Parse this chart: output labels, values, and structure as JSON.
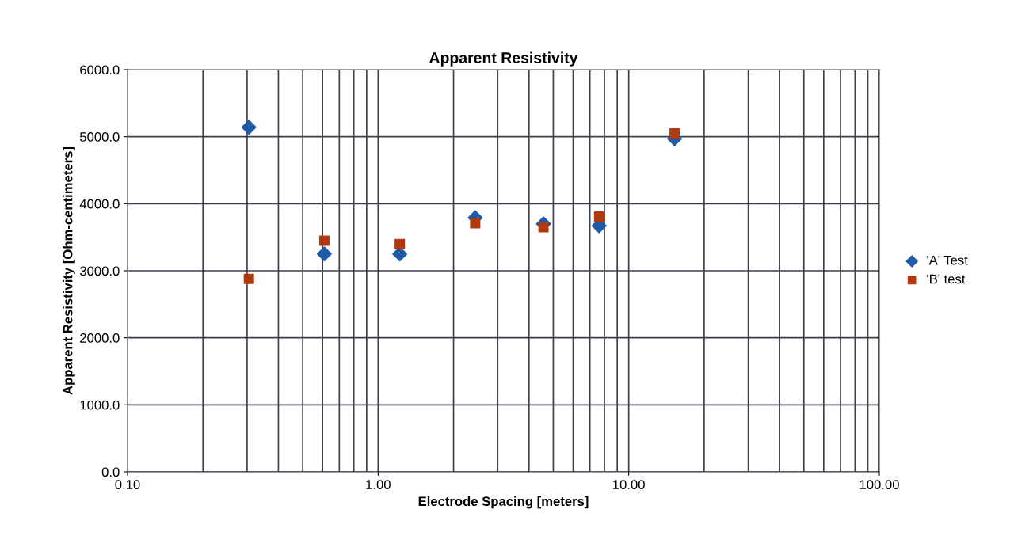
{
  "chart_data": {
    "type": "scatter",
    "title": "Apparent Resistivity",
    "xlabel": "Electrode Spacing [meters]",
    "ylabel": "Apparent Resistivity [Ohm-centimeters]",
    "x": [
      0.305,
      0.61,
      1.22,
      2.44,
      4.57,
      7.62,
      15.24
    ],
    "series": [
      {
        "name": "'A' Test",
        "color": "#1f5aa6",
        "marker": "diamond",
        "values": [
          5140,
          3250,
          3250,
          3790,
          3700,
          3670,
          4970
        ]
      },
      {
        "name": "'B' test",
        "color": "#b03a0e",
        "marker": "square",
        "values": [
          2880,
          3450,
          3400,
          3710,
          3650,
          3810,
          5050
        ]
      }
    ],
    "log": "x",
    "xlim": [
      0.1,
      100
    ],
    "xticks": [
      {
        "value": 0.1,
        "label": "0.10"
      },
      {
        "value": 1,
        "label": "1.00"
      },
      {
        "value": 10,
        "label": "10.00"
      },
      {
        "value": 100,
        "label": "100.00"
      }
    ],
    "ylim": [
      0,
      6000
    ],
    "yticks": [
      {
        "value": 0,
        "label": "0.0"
      },
      {
        "value": 1000,
        "label": "1000.0"
      },
      {
        "value": 2000,
        "label": "2000.0"
      },
      {
        "value": 3000,
        "label": "3000.0"
      },
      {
        "value": 4000,
        "label": "4000.0"
      },
      {
        "value": 5000,
        "label": "5000.0"
      },
      {
        "value": 6000,
        "label": "6000.0"
      }
    ],
    "grid": true,
    "legend": "right"
  }
}
